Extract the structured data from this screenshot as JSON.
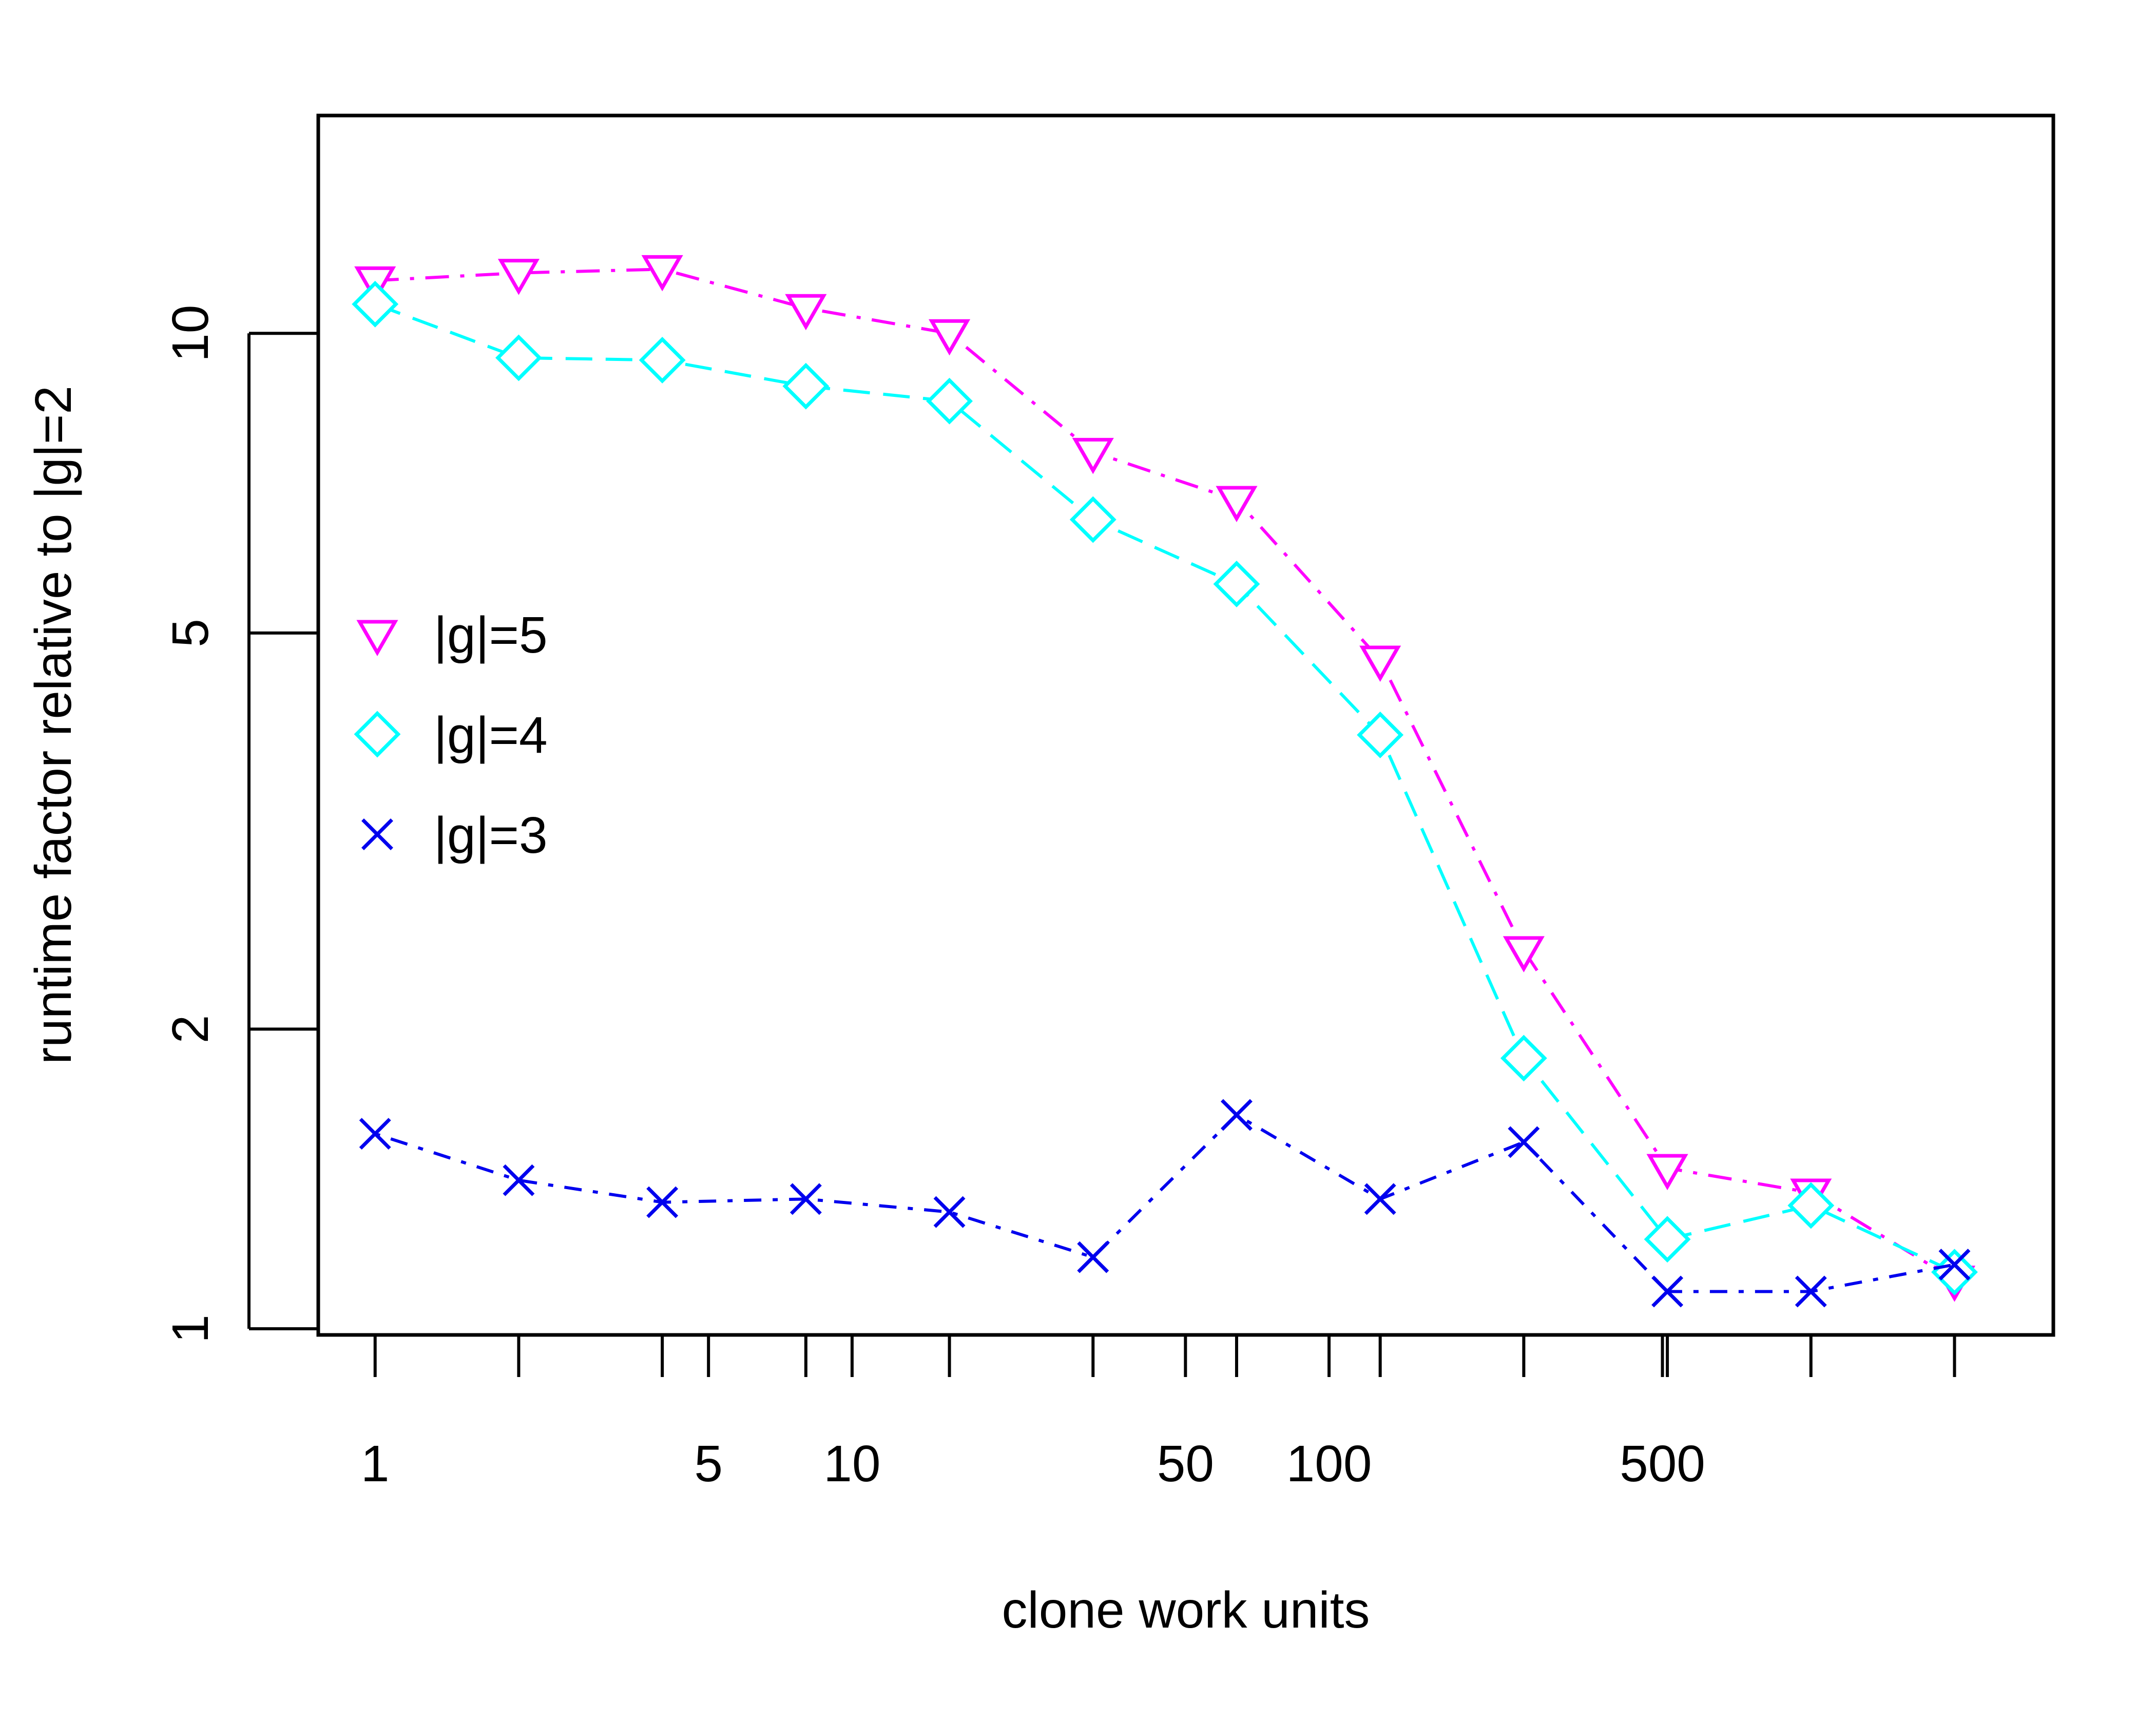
{
  "chart_data": {
    "type": "line",
    "title": "",
    "xlabel": "clone work units",
    "ylabel": "runtime factor relative to |g|=2",
    "x_scale": "log2",
    "y_scale": "log",
    "xlim": [
      0.76,
      3300
    ],
    "ylim": [
      1,
      14.1
    ],
    "x": [
      1,
      2,
      4,
      8,
      16,
      32,
      64,
      128,
      256,
      512,
      1024,
      2048
    ],
    "x_ticks": [
      1,
      2,
      4,
      8,
      16,
      32,
      64,
      128,
      256,
      512,
      1024,
      2048
    ],
    "x_tick_labels": [
      {
        "value": 1,
        "label": "1"
      },
      {
        "value": 5,
        "label": "5"
      },
      {
        "value": 10,
        "label": "10"
      },
      {
        "value": 50,
        "label": "50"
      },
      {
        "value": 100,
        "label": "100"
      },
      {
        "value": 500,
        "label": "500"
      }
    ],
    "y_ticks": [
      {
        "value": 1,
        "label": "1"
      },
      {
        "value": 2,
        "label": "2"
      },
      {
        "value": 5,
        "label": "5"
      },
      {
        "value": 10,
        "label": "10"
      }
    ],
    "grid": false,
    "legend_position": "left-middle",
    "series": [
      {
        "name": "|g|=5",
        "color": "#ff00ff",
        "marker": "triangle-down",
        "line_style": "dash-dot",
        "values": [
          11.3,
          11.5,
          11.6,
          10.6,
          10.0,
          7.6,
          6.8,
          4.7,
          2.4,
          1.45,
          1.37,
          1.12
        ]
      },
      {
        "name": "|g|=4",
        "color": "#00ffff",
        "marker": "diamond",
        "line_style": "dashed",
        "values": [
          10.7,
          9.45,
          9.4,
          8.85,
          8.55,
          6.5,
          5.6,
          3.95,
          1.87,
          1.23,
          1.33,
          1.14
        ]
      },
      {
        "name": "|g|=3",
        "color": "#0000ee",
        "marker": "x",
        "line_style": "dot-dash",
        "values": [
          1.57,
          1.41,
          1.34,
          1.35,
          1.31,
          1.18,
          1.64,
          1.35,
          1.54,
          1.09,
          1.09,
          1.16
        ]
      }
    ]
  }
}
